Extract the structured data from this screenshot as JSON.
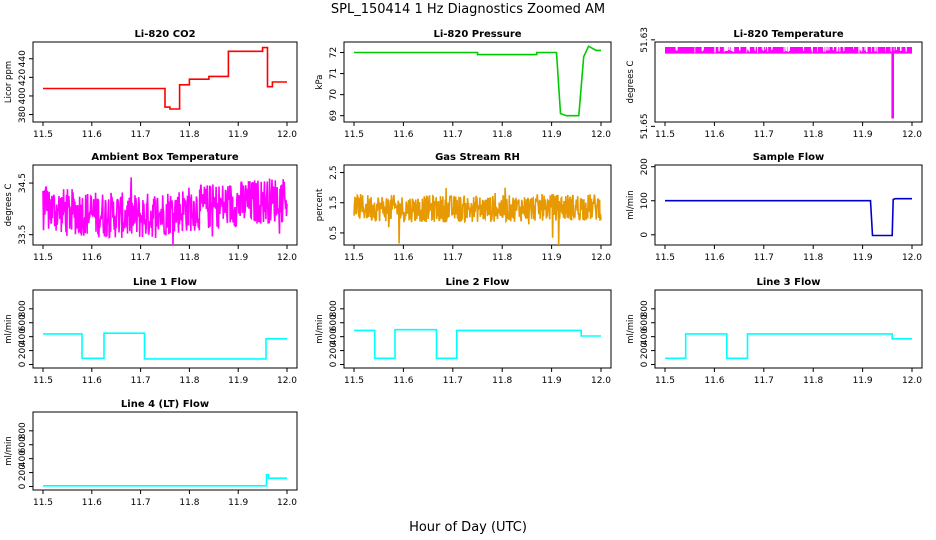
{
  "figure": {
    "title": "SPL_150414  1 Hz Diagnostics Zoomed AM",
    "xlabel": "Hour of Day (UTC)"
  },
  "chart_data": [
    {
      "type": "line",
      "title": "Li-820 CO2",
      "ylabel": "Licor ppm",
      "color": "#ff0000",
      "xlim": [
        11.5,
        12.0
      ],
      "ylim": [
        372,
        458
      ],
      "xticks": [
        "11.5",
        "11.6",
        "11.7",
        "11.8",
        "11.9",
        "12.0"
      ],
      "yticks": [
        380,
        400,
        420,
        440
      ],
      "series": [
        {
          "x": [
            11.5,
            11.75,
            11.75,
            11.76,
            11.76,
            11.78,
            11.78,
            11.8,
            11.8,
            11.84,
            11.84,
            11.88,
            11.88,
            11.95,
            11.95,
            11.96,
            11.96,
            11.97,
            11.97,
            12.0
          ],
          "y": [
            408,
            408,
            388,
            388,
            386,
            386,
            412,
            412,
            418,
            418,
            421,
            421,
            448,
            448,
            452,
            452,
            410,
            410,
            415,
            415
          ]
        }
      ]
    },
    {
      "type": "line",
      "title": "Li-820 Pressure",
      "ylabel": "kPa",
      "color": "#00cc00",
      "xlim": [
        11.5,
        12.0
      ],
      "ylim": [
        68.7,
        72.5
      ],
      "xticks": [
        "11.5",
        "11.6",
        "11.7",
        "11.8",
        "11.9",
        "12.0"
      ],
      "yticks": [
        69,
        70,
        71,
        72
      ],
      "series": [
        {
          "x": [
            11.5,
            11.75,
            11.75,
            11.87,
            11.87,
            11.91,
            11.918,
            11.93,
            11.955,
            11.965,
            11.975,
            11.99,
            12.0
          ],
          "y": [
            72.0,
            72.0,
            71.9,
            71.9,
            72.0,
            72.0,
            69.1,
            69.0,
            69.0,
            71.8,
            72.3,
            72.1,
            72.1
          ]
        }
      ]
    },
    {
      "type": "line",
      "title": "Li-820 Temperature",
      "ylabel": "degrees C",
      "color": "#ff00ff",
      "xlim": [
        11.5,
        12.0
      ],
      "ylim": [
        51.649,
        51.6305
      ],
      "xticks": [
        "11.5",
        "11.6",
        "11.7",
        "11.8",
        "11.9",
        "12.0"
      ],
      "yticks": [
        51.65,
        51.63
      ],
      "series": [
        {
          "x": [
            11.5,
            11.96,
            11.96,
            11.962,
            11.962,
            12.0
          ],
          "y": [
            51.633,
            51.633,
            51.648,
            51.648,
            51.633,
            51.633
          ]
        }
      ]
    },
    {
      "type": "line",
      "title": "Ambient Box Temperature",
      "ylabel": "degrees C",
      "color": "#ff00ff",
      "xlim": [
        11.5,
        12.0
      ],
      "ylim": [
        33.3,
        34.85
      ],
      "xticks": [
        "11.5",
        "11.6",
        "11.7",
        "11.8",
        "11.9",
        "12.0"
      ],
      "yticks": [
        33.5,
        34.5
      ],
      "series": [
        {
          "x": [
            11.5,
            11.6,
            11.7,
            11.8,
            11.9,
            12.0
          ],
          "y": [
            34.0,
            33.9,
            33.85,
            34.0,
            34.1,
            34.2
          ]
        }
      ]
    },
    {
      "type": "line",
      "title": "Gas Stream RH",
      "ylabel": "percent",
      "color": "#e69900",
      "xlim": [
        11.5,
        12.0
      ],
      "ylim": [
        0.1,
        2.75
      ],
      "xticks": [
        "11.5",
        "11.6",
        "11.7",
        "11.8",
        "11.9",
        "12.0"
      ],
      "yticks": [
        0.5,
        1.5,
        2.5
      ],
      "series": [
        {
          "x": [
            11.5,
            11.6,
            11.7,
            11.8,
            11.9,
            12.0
          ],
          "y": [
            1.35,
            1.3,
            1.3,
            1.3,
            1.35,
            1.35
          ]
        }
      ]
    },
    {
      "type": "line",
      "title": "Sample Flow",
      "ylabel": "ml/min",
      "color": "#0000cc",
      "xlim": [
        11.5,
        12.0
      ],
      "ylim": [
        -30,
        205
      ],
      "xticks": [
        "11.5",
        "11.6",
        "11.7",
        "11.8",
        "11.9",
        "12.0"
      ],
      "yticks": [
        0,
        100,
        200
      ],
      "series": [
        {
          "x": [
            11.5,
            11.916,
            11.92,
            11.96,
            11.962,
            11.966,
            12.0
          ],
          "y": [
            100,
            100,
            -2,
            -2,
            104,
            106,
            106
          ]
        }
      ]
    },
    {
      "type": "line",
      "title": "Line 1 Flow",
      "ylabel": "ml/min",
      "color": "#00ffff",
      "xlim": [
        11.5,
        12.0
      ],
      "ylim": [
        -50,
        1070
      ],
      "xticks": [
        "11.5",
        "11.6",
        "11.7",
        "11.8",
        "11.9",
        "12.0"
      ],
      "yticks": [
        0,
        200,
        400,
        600,
        800
      ],
      "series": [
        {
          "x": [
            11.5,
            11.58,
            11.58,
            11.625,
            11.625,
            11.708,
            11.708,
            11.957,
            11.957,
            12.0
          ],
          "y": [
            440,
            440,
            90,
            90,
            450,
            450,
            80,
            80,
            370,
            370
          ]
        }
      ]
    },
    {
      "type": "line",
      "title": "Line 2 Flow",
      "ylabel": "ml/min",
      "color": "#00ffff",
      "xlim": [
        11.5,
        12.0
      ],
      "ylim": [
        -50,
        1070
      ],
      "xticks": [
        "11.5",
        "11.6",
        "11.7",
        "11.8",
        "11.9",
        "12.0"
      ],
      "yticks": [
        0,
        200,
        400,
        600,
        800
      ],
      "series": [
        {
          "x": [
            11.5,
            11.542,
            11.542,
            11.583,
            11.583,
            11.667,
            11.667,
            11.708,
            11.708,
            11.96,
            11.96,
            12.0
          ],
          "y": [
            490,
            490,
            90,
            90,
            500,
            500,
            90,
            90,
            490,
            490,
            410,
            410
          ]
        }
      ]
    },
    {
      "type": "line",
      "title": "Line 3 Flow",
      "ylabel": "ml/min",
      "color": "#00ffff",
      "xlim": [
        11.5,
        12.0
      ],
      "ylim": [
        -50,
        1070
      ],
      "xticks": [
        "11.5",
        "11.6",
        "11.7",
        "11.8",
        "11.9",
        "12.0"
      ],
      "yticks": [
        0,
        200,
        400,
        600,
        800
      ],
      "series": [
        {
          "x": [
            11.5,
            11.542,
            11.542,
            11.625,
            11.625,
            11.667,
            11.667,
            11.96,
            11.96,
            12.0
          ],
          "y": [
            90,
            90,
            440,
            440,
            90,
            90,
            440,
            440,
            370,
            370
          ]
        }
      ]
    },
    {
      "type": "line",
      "title": "Line 4 (LT) Flow",
      "ylabel": "ml/min",
      "color": "#00ffff",
      "xlim": [
        11.5,
        12.0
      ],
      "ylim": [
        -50,
        1070
      ],
      "xticks": [
        "11.5",
        "11.6",
        "11.7",
        "11.8",
        "11.9",
        "12.0"
      ],
      "yticks": [
        0,
        200,
        400,
        600,
        800
      ],
      "series": [
        {
          "x": [
            11.5,
            11.958,
            11.958,
            11.962,
            11.962,
            12.0
          ],
          "y": [
            10,
            10,
            170,
            170,
            120,
            120
          ]
        }
      ]
    }
  ]
}
